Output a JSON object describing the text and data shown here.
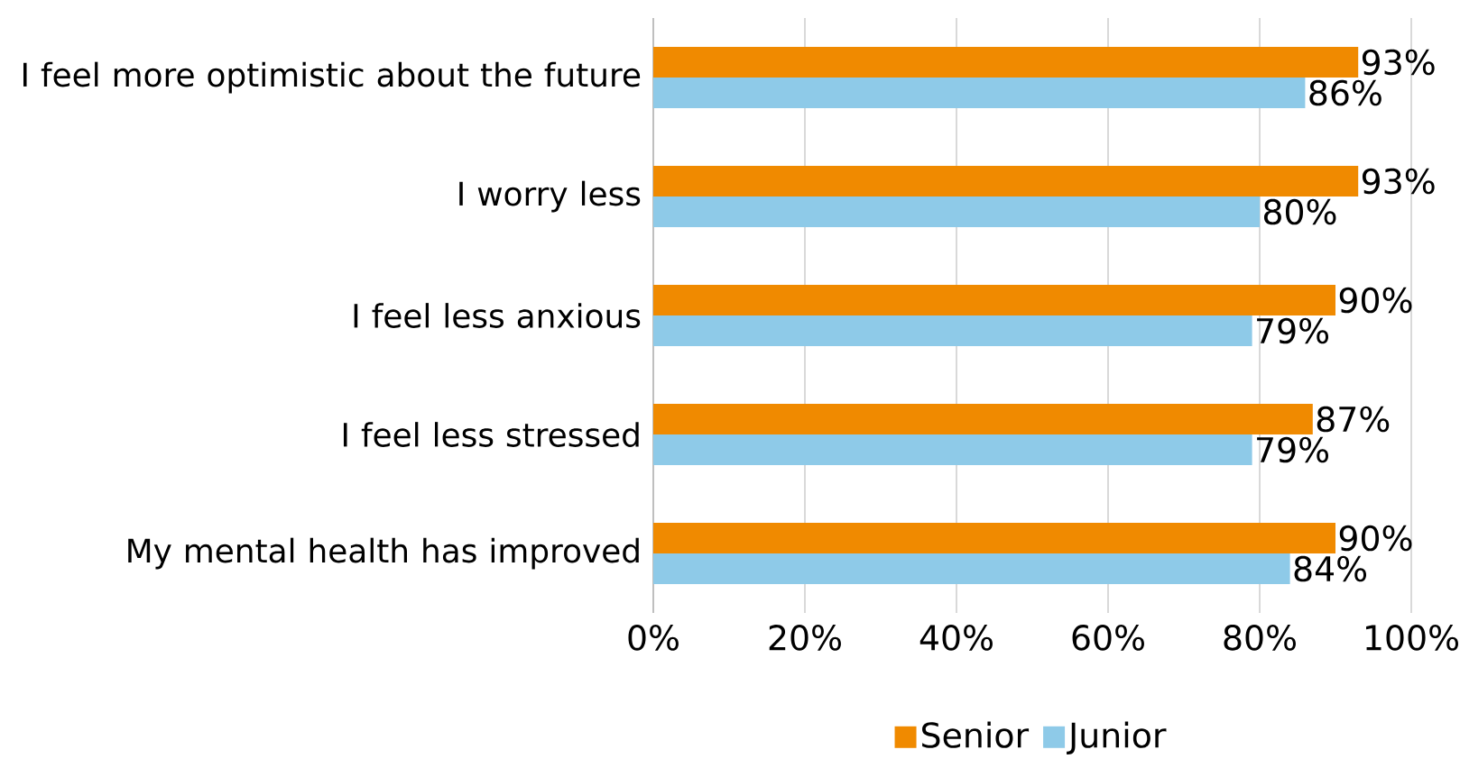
{
  "chart_data": {
    "type": "bar",
    "orientation": "horizontal",
    "categories": [
      "I feel more optimistic about the future",
      "I worry less",
      "I feel less anxious",
      "I feel less stressed",
      "My mental health has improved"
    ],
    "series": [
      {
        "name": "Senior",
        "color": "#f08a00",
        "values": [
          93,
          93,
          90,
          87,
          90
        ],
        "value_labels": [
          "93%",
          "93%",
          "90%",
          "87%",
          "90%"
        ]
      },
      {
        "name": "Junior",
        "color": "#8ecae8",
        "values": [
          86,
          80,
          79,
          79,
          84
        ],
        "value_labels": [
          "86%",
          "80%",
          "79%",
          "79%",
          "84%"
        ]
      }
    ],
    "xlim": [
      0,
      100
    ],
    "xticks": [
      {
        "value": 0,
        "label": "0%"
      },
      {
        "value": 20,
        "label": "20%"
      },
      {
        "value": 40,
        "label": "40%"
      },
      {
        "value": 60,
        "label": "60%"
      },
      {
        "value": 80,
        "label": "80%"
      },
      {
        "value": 100,
        "label": "100%"
      }
    ],
    "grid": "x",
    "legend": "bottom"
  }
}
